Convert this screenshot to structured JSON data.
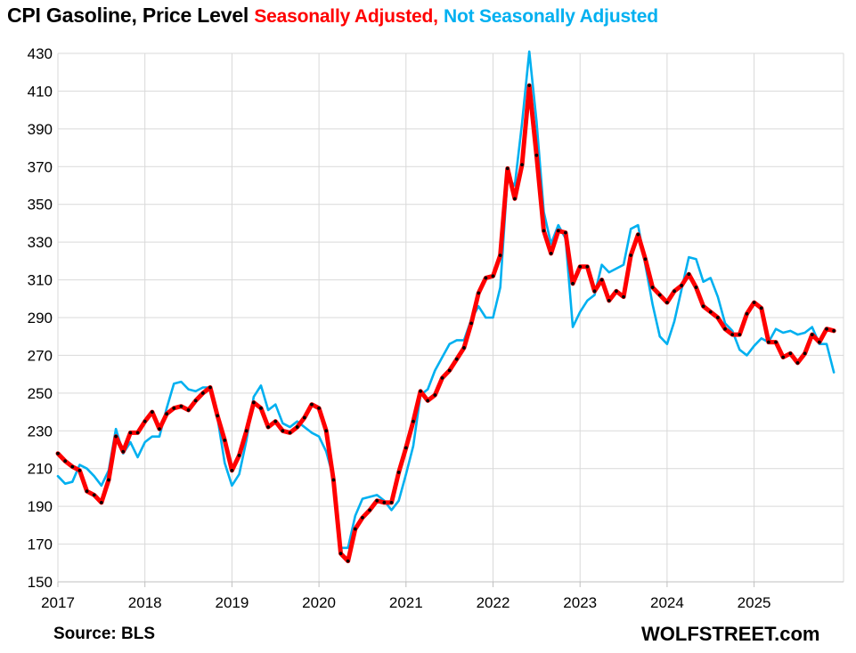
{
  "title": {
    "main": "CPI Gasoline, Price Level",
    "sa": "Seasonally Adjusted,",
    "nsa": "Not Seasonally Adjusted"
  },
  "source": "Source: BLS",
  "brand": "WOLFSTREET.com",
  "colors": {
    "sa": "#ff0000",
    "nsa": "#00b0f0",
    "sa_markers": "#000000",
    "grid": "#d9d9d9"
  },
  "chart_data": {
    "type": "line",
    "title": "CPI Gasoline, Price Level",
    "xlabel": "",
    "ylabel": "",
    "ylim": [
      150,
      430
    ],
    "xlim": [
      "2017-01",
      "2025-12"
    ],
    "grid": true,
    "y_ticks": [
      150,
      170,
      190,
      210,
      230,
      250,
      270,
      290,
      310,
      330,
      350,
      370,
      390,
      410,
      430
    ],
    "x_ticks": [
      "2017",
      "2018",
      "2019",
      "2020",
      "2021",
      "2022",
      "2023",
      "2024",
      "2025"
    ],
    "x_start": "2017-01",
    "x_step": "monthly",
    "series": [
      {
        "name": "Seasonally Adjusted",
        "color": "#ff0000",
        "values": [
          218,
          214,
          211,
          209,
          198,
          196,
          192,
          204,
          227,
          219,
          229,
          229,
          235,
          240,
          231,
          239,
          242,
          243,
          241,
          246,
          250,
          253,
          238,
          225,
          209,
          217,
          230,
          245,
          242,
          232,
          235,
          230,
          229,
          232,
          237,
          244,
          242,
          230,
          204,
          165,
          161,
          178,
          184,
          188,
          193,
          192,
          192,
          208,
          221,
          235,
          251,
          246,
          249,
          258,
          262,
          268,
          274,
          287,
          303,
          311,
          312,
          323,
          369,
          353,
          371,
          413,
          376,
          336,
          324,
          336,
          335,
          308,
          317,
          317,
          304,
          310,
          299,
          304,
          301,
          323,
          334,
          321,
          306,
          302,
          298,
          304,
          307,
          313,
          306,
          296,
          293,
          290,
          284,
          281,
          281,
          292,
          298,
          295,
          277,
          277,
          269,
          271,
          266,
          271,
          281,
          277,
          284,
          283
        ]
      },
      {
        "name": "Not Seasonally Adjusted",
        "color": "#00b0f0",
        "values": [
          206,
          202,
          203,
          212,
          210,
          206,
          201,
          209,
          231,
          218,
          224,
          216,
          224,
          227,
          227,
          242,
          255,
          256,
          252,
          251,
          253,
          253,
          237,
          213,
          201,
          207,
          225,
          248,
          254,
          241,
          244,
          234,
          232,
          235,
          232,
          229,
          227,
          219,
          205,
          168,
          168,
          185,
          194,
          195,
          196,
          193,
          188,
          193,
          207,
          222,
          249,
          252,
          262,
          269,
          276,
          278,
          278,
          289,
          296,
          290,
          290,
          306,
          364,
          360,
          393,
          431,
          394,
          346,
          329,
          339,
          332,
          285,
          293,
          299,
          302,
          318,
          314,
          316,
          318,
          337,
          339,
          318,
          297,
          280,
          276,
          288,
          305,
          322,
          321,
          309,
          311,
          301,
          287,
          283,
          273,
          270,
          275,
          279,
          277,
          284,
          282,
          283,
          281,
          282,
          285,
          276,
          276,
          261
        ]
      }
    ]
  }
}
